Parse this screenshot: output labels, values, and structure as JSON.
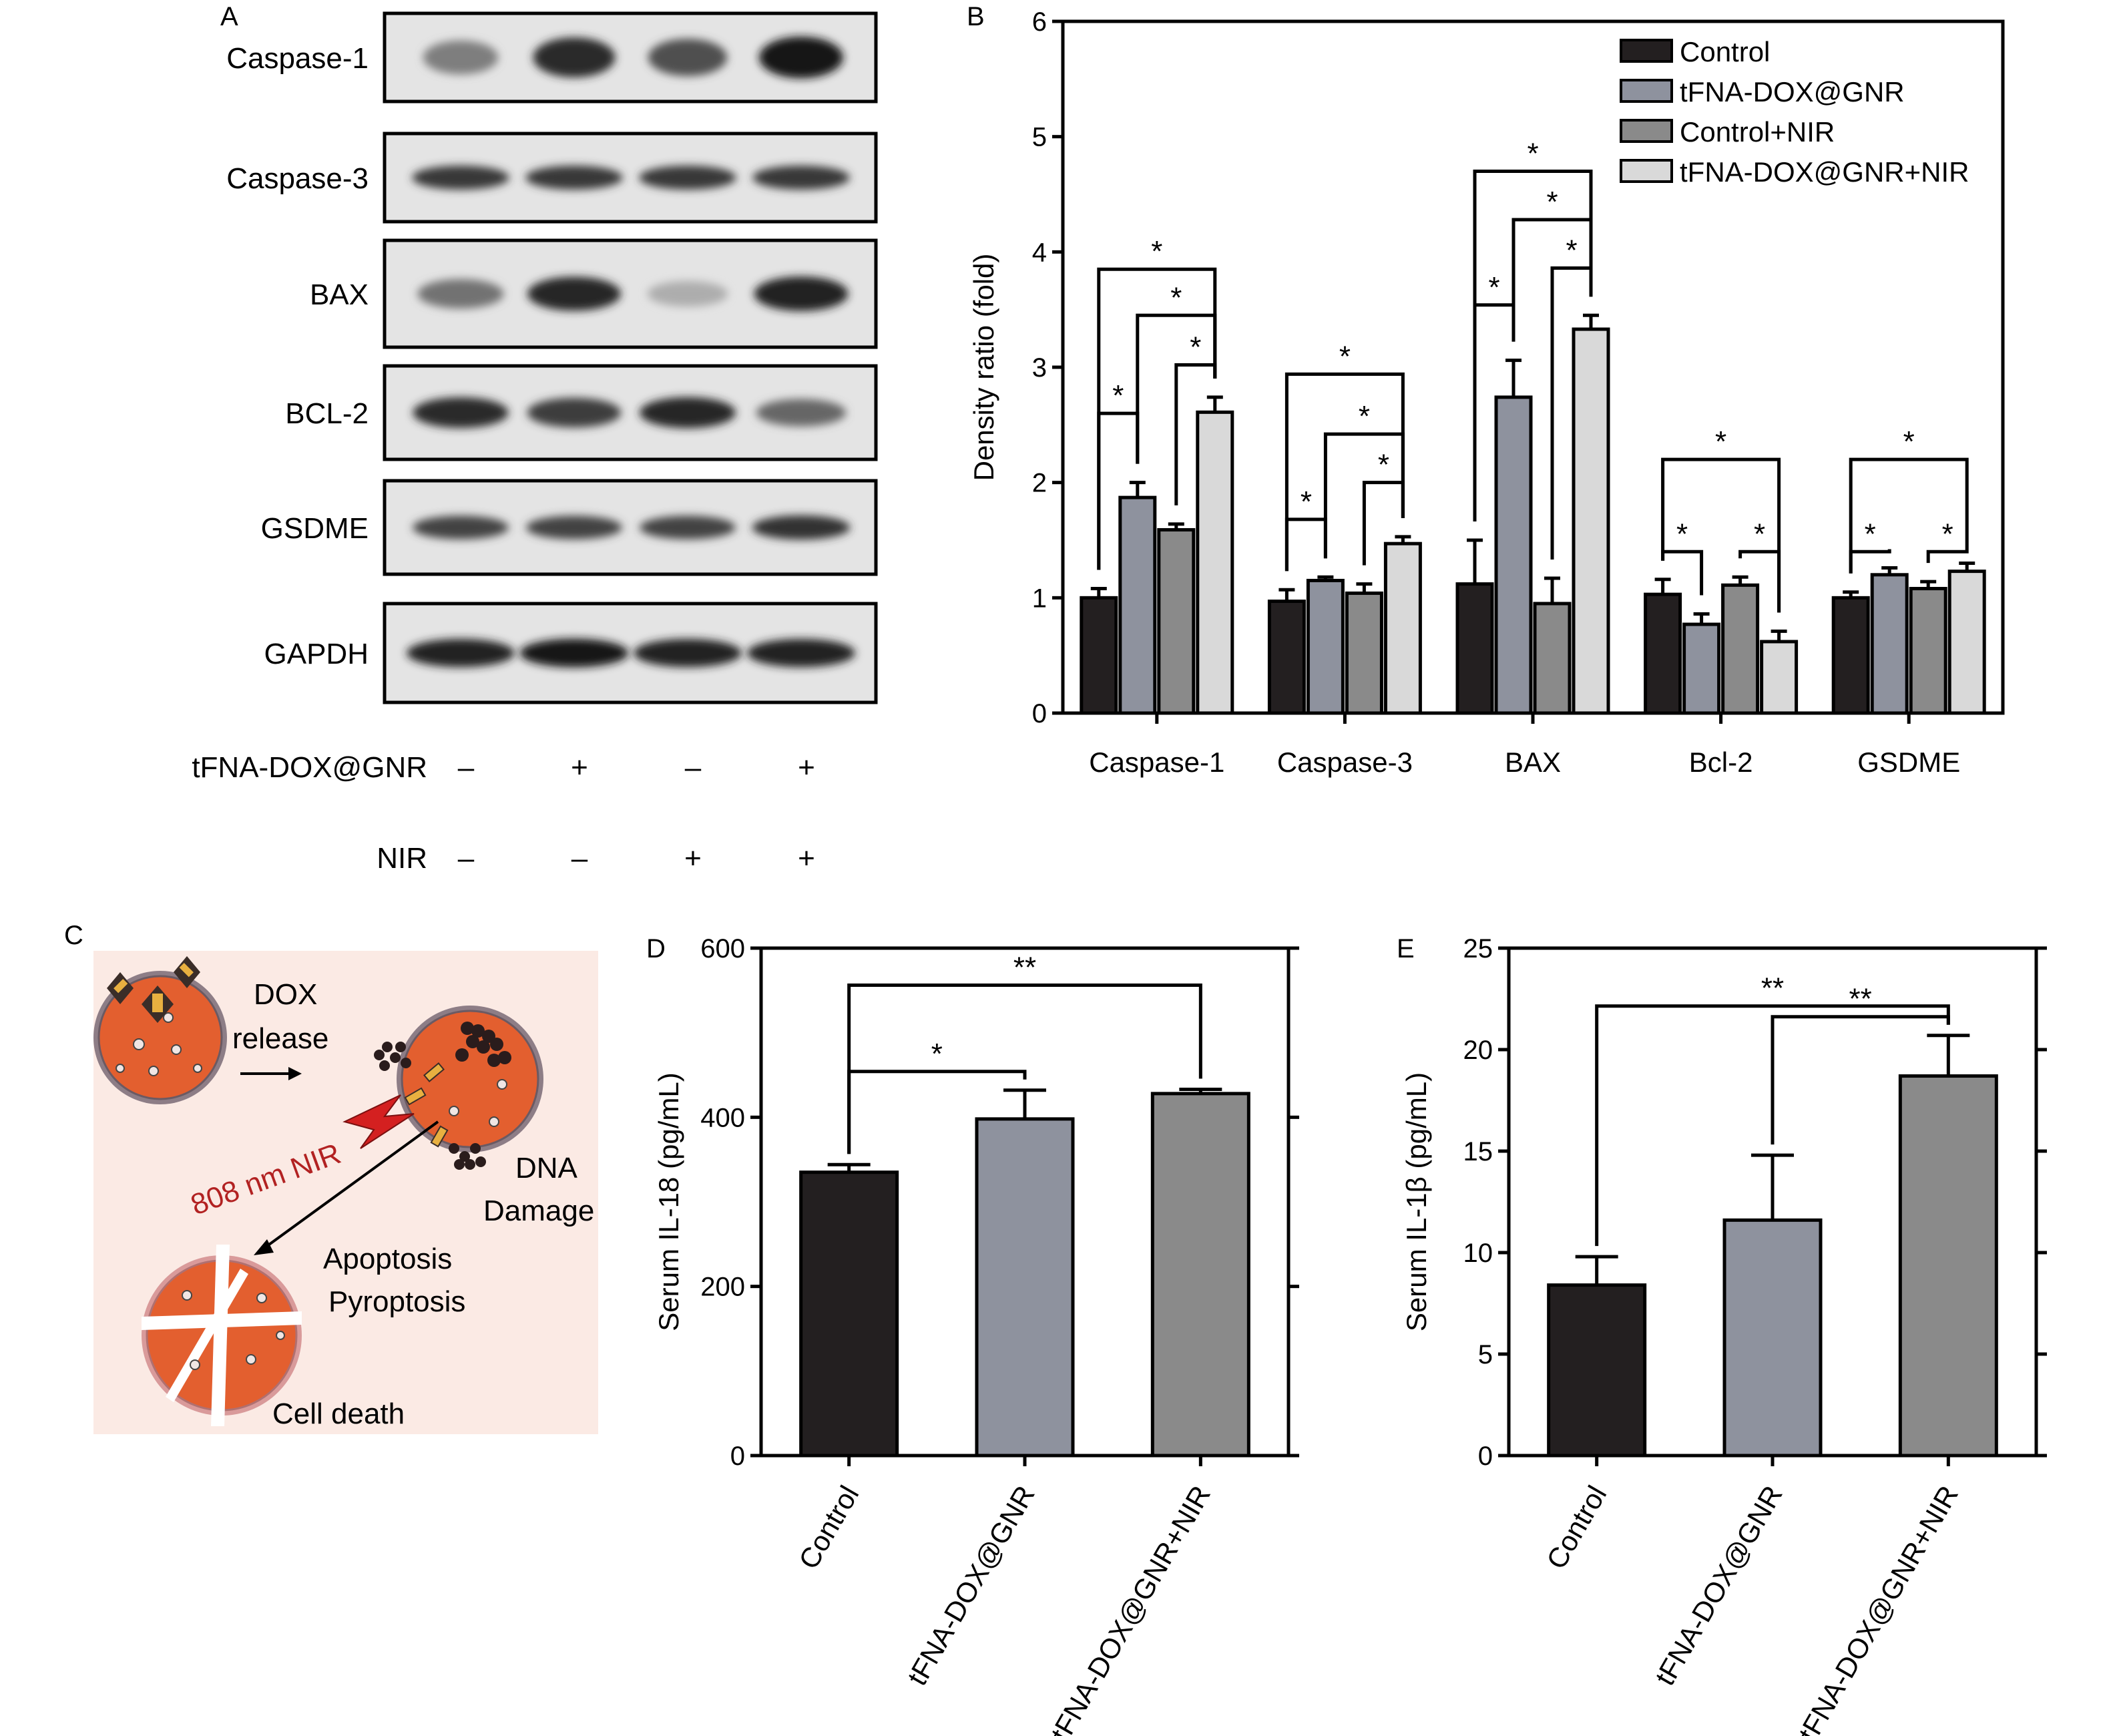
{
  "panels": {
    "A": {
      "letter": "A",
      "proteins": [
        "Caspase-1",
        "Caspase-3",
        "BAX",
        "BCL-2",
        "GSDME",
        "GAPDH"
      ],
      "treatments": [
        {
          "label": "tFNA-DOX@GNR",
          "signs": [
            "–",
            "+",
            "–",
            "+"
          ]
        },
        {
          "label": "NIR",
          "signs": [
            "–",
            "–",
            "+",
            "+"
          ]
        }
      ]
    },
    "B": {
      "letter": "B"
    },
    "C": {
      "letter": "C",
      "labels": {
        "dox": "DOX",
        "release": "release",
        "nir": "808 nm NIR",
        "dna": "DNA",
        "damage": "Damage",
        "apoptosis": "Apoptosis",
        "pyroptosis": "Pyroptosis",
        "cell_death": "Cell death"
      },
      "colors": {
        "background": "#fbeae4",
        "cell": "#e8602c",
        "nir": "#b22222"
      }
    },
    "D": {
      "letter": "D"
    },
    "E": {
      "letter": "E"
    }
  },
  "chart_data": [
    {
      "id": "B",
      "type": "bar",
      "categories": [
        "Caspase-1",
        "Caspase-3",
        "BAX",
        "Bcl-2",
        "GSDME"
      ],
      "series": [
        {
          "name": "Control",
          "color": "#231f20",
          "values": [
            1.0,
            0.97,
            1.12,
            1.03,
            1.0
          ],
          "errors": [
            0.08,
            0.1,
            0.38,
            0.13,
            0.05
          ]
        },
        {
          "name": "tFNA-DOX@GNR",
          "color": "#8e929e",
          "values": [
            1.87,
            1.15,
            2.74,
            0.77,
            1.2
          ],
          "errors": [
            0.13,
            0.03,
            0.32,
            0.09,
            0.06
          ]
        },
        {
          "name": "Control+NIR",
          "color": "#8a8a8a",
          "values": [
            1.59,
            1.04,
            0.95,
            1.11,
            1.08
          ],
          "errors": [
            0.05,
            0.08,
            0.22,
            0.07,
            0.06
          ]
        },
        {
          "name": "tFNA-DOX@GNR+NIR",
          "color": "#d9d9d9",
          "values": [
            2.61,
            1.47,
            3.33,
            0.62,
            1.23
          ],
          "errors": [
            0.13,
            0.06,
            0.12,
            0.09,
            0.07
          ]
        }
      ],
      "ylabel": "Density ratio (fold)",
      "ylim": [
        0,
        6
      ],
      "yticks": [
        0,
        1,
        2,
        3,
        4,
        5,
        6
      ],
      "legend": "top-right",
      "annotation": "*"
    },
    {
      "id": "D",
      "type": "bar",
      "categories": [
        "Control",
        "tFNA-DOX@GNR",
        "tFNA-DOX@GNR+NIR"
      ],
      "colors": [
        "#231f20",
        "#8e929e",
        "#8a8a8a"
      ],
      "values": [
        335,
        398,
        428
      ],
      "errors": [
        9,
        34,
        5
      ],
      "ylabel": "Serum IL-18 (pg/mL)",
      "ylim": [
        0,
        600
      ],
      "yticks": [
        0,
        200,
        400,
        600
      ],
      "significance": [
        {
          "from": 0,
          "to": 1,
          "label": "*"
        },
        {
          "from": 0,
          "to": 2,
          "label": "**"
        }
      ]
    },
    {
      "id": "E",
      "type": "bar",
      "categories": [
        "Control",
        "tFNA-DOX@GNR",
        "tFNA-DOX@GNR+NIR"
      ],
      "colors": [
        "#231f20",
        "#8e929e",
        "#8a8a8a"
      ],
      "values": [
        8.4,
        11.6,
        18.7
      ],
      "errors": [
        1.4,
        3.2,
        2.0
      ],
      "ylabel": "Serum IL-1β (pg/mL)",
      "ylim": [
        0,
        25
      ],
      "yticks": [
        0,
        5,
        10,
        15,
        20,
        25
      ],
      "significance": [
        {
          "from": 0,
          "to": 2,
          "label": "**"
        },
        {
          "from": 1,
          "to": 2,
          "label": "**"
        }
      ]
    }
  ]
}
